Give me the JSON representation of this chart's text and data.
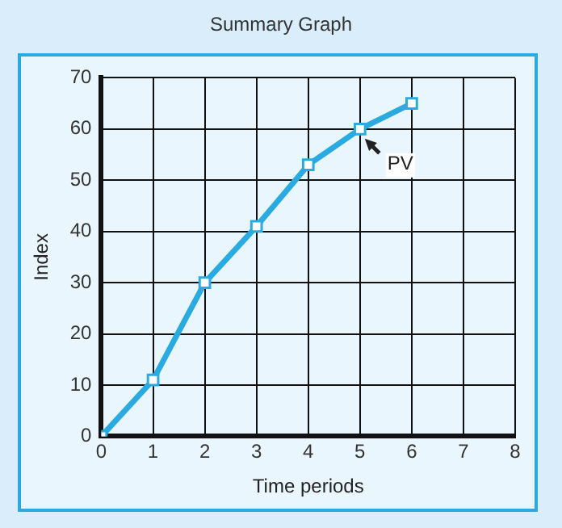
{
  "chart_data": {
    "type": "line",
    "title": "Summary Graph",
    "xlabel": "Time periods",
    "ylabel": "Index",
    "x": [
      0,
      1,
      2,
      3,
      4,
      5,
      6
    ],
    "series": [
      {
        "color": "#29abe2",
        "values": [
          0,
          11,
          30,
          41,
          53,
          60,
          65
        ]
      }
    ],
    "xlim": [
      0,
      8
    ],
    "xticks": [
      0,
      1,
      2,
      3,
      4,
      5,
      6,
      7,
      8
    ],
    "ylim": [
      0,
      70
    ],
    "yticks": [
      0,
      10,
      20,
      30,
      40,
      50,
      60,
      70
    ],
    "grid": true,
    "legend": false,
    "marker": "square",
    "line_style": "solid",
    "annotations": [
      {
        "text": "PV",
        "x": 5,
        "y": 60
      }
    ]
  }
}
